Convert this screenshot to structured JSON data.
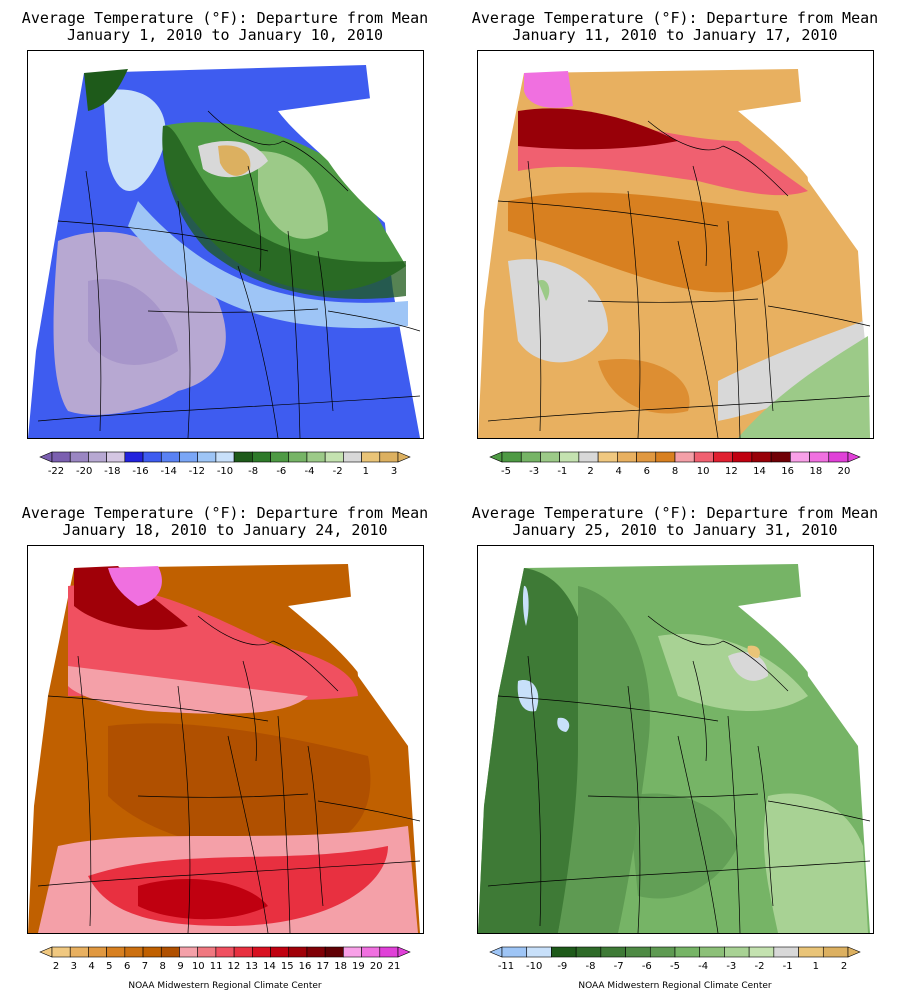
{
  "panels": [
    {
      "title_line1": "Average Temperature (°F): Departure from Mean",
      "title_line2": "January 1, 2010 to January 10, 2010",
      "legend_labels": [
        "-22",
        "-20",
        "-18",
        "-16",
        "-14",
        "-12",
        "-10",
        "-8",
        "-6",
        "-4",
        "-2",
        "1",
        "3"
      ],
      "legend_colors": [
        "#7b5fb0",
        "#9a86c2",
        "#b7a8d2",
        "#d4c6e2",
        "#2222dd",
        "#3e5cf0",
        "#5a82f4",
        "#7aa6f6",
        "#9ec5f6",
        "#c8e0fa",
        "#1e5a1a",
        "#2e7a2a",
        "#4e9a44",
        "#76b466",
        "#9cca88",
        "#c4e2b0",
        "#d8d8d8",
        "#e9c478",
        "#dcb060"
      ],
      "map_colors": {
        "base": "#3e5cf0",
        "purple": "#b7a8d2",
        "green": "#4e9a44",
        "lightblue": "#c8e0fa",
        "gray": "#d8d8d8",
        "orange": "#dcb060"
      }
    },
    {
      "title_line1": "Average Temperature (°F): Departure from Mean",
      "title_line2": "January 11, 2010 to January 17, 2010",
      "legend_labels": [
        "-5",
        "-3",
        "-1",
        "2",
        "4",
        "6",
        "8",
        "10",
        "12",
        "14",
        "16",
        "18",
        "20"
      ],
      "legend_colors": [
        "#4e9a44",
        "#76b466",
        "#9cca88",
        "#c4e2b0",
        "#d8d8d8",
        "#f0c880",
        "#e8b060",
        "#e09840",
        "#d88020",
        "#f4a0a8",
        "#f06070",
        "#e02030",
        "#c00010",
        "#980008",
        "#700006",
        "#f8a0e8",
        "#f070e0",
        "#e040d8"
      ],
      "map_colors": {
        "base": "#e8b060",
        "dark": "#d88020",
        "gray": "#d8d8d8",
        "green": "#9cca88",
        "red": "#c00010",
        "pink": "#f06070",
        "magenta": "#f070e0"
      }
    },
    {
      "title_line1": "Average Temperature (°F): Departure from Mean",
      "title_line2": "January 18, 2010 to January 24, 2010",
      "legend_labels": [
        "2",
        "3",
        "4",
        "5",
        "6",
        "7",
        "8",
        "9",
        "10",
        "11",
        "12",
        "13",
        "14",
        "15",
        "16",
        "17",
        "18",
        "19",
        "20",
        "21"
      ],
      "legend_colors": [
        "#f0c880",
        "#e8b060",
        "#e09840",
        "#d88020",
        "#cc7010",
        "#c06000",
        "#b05000",
        "#f4a0a8",
        "#f07880",
        "#f05060",
        "#e83040",
        "#d81020",
        "#c00010",
        "#a00008",
        "#800006",
        "#600004",
        "#f8a0e8",
        "#f070e0",
        "#e040d8"
      ],
      "map_colors": {
        "base": "#c06000",
        "brown": "#b05000",
        "red": "#e83040",
        "darkred": "#a00008",
        "pink": "#f4a0a8",
        "magenta": "#f070e0"
      }
    },
    {
      "title_line1": "Average Temperature (°F): Departure from Mean",
      "title_line2": "January 25, 2010 to January 31, 2010",
      "legend_labels": [
        "-11",
        "-10",
        "-9",
        "-8",
        "-7",
        "-6",
        "-5",
        "-4",
        "-3",
        "-2",
        "-1",
        "1",
        "2"
      ],
      "legend_colors": [
        "#9ec5f6",
        "#c8e0fa",
        "#1e5a1a",
        "#2e6a28",
        "#3e7a36",
        "#4e8a44",
        "#5e9a52",
        "#76b466",
        "#8cc078",
        "#a8d294",
        "#c4e2b0",
        "#d8d8d8",
        "#e9c478",
        "#dcb060"
      ],
      "map_colors": {
        "base": "#76b466",
        "dark": "#3e7a36",
        "mid": "#5e9a52",
        "light": "#a8d294",
        "lightblue": "#c8e0fa",
        "gray": "#d8d8d8",
        "orange": "#e9c478"
      }
    }
  ],
  "credit": "NOAA Midwestern Regional Climate Center"
}
